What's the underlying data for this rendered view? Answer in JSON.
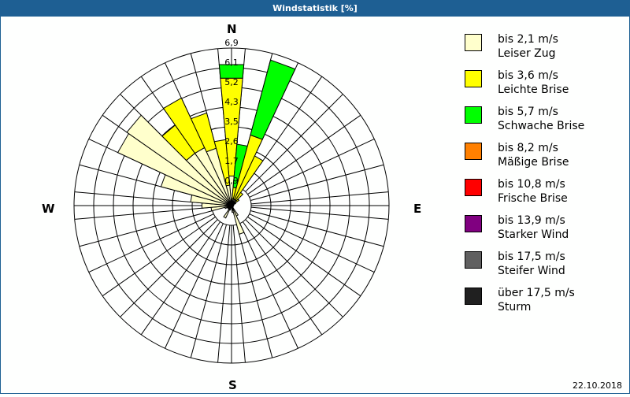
{
  "window": {
    "title": "Windstatistik [%]"
  },
  "compass": {
    "n": "N",
    "e": "E",
    "s": "S",
    "w": "W"
  },
  "legend": [
    {
      "line1": "bis 2,1 m/s",
      "line2": "Leiser Zug",
      "color": "#ffffcc"
    },
    {
      "line1": "bis 3,6 m/s",
      "line2": "Leichte Brise",
      "color": "#ffff00"
    },
    {
      "line1": "bis 5,7 m/s",
      "line2": "Schwache Brise",
      "color": "#00ff00"
    },
    {
      "line1": "bis 8,2 m/s",
      "line2": "Mäßige Brise",
      "color": "#ff8000"
    },
    {
      "line1": "bis 10,8 m/s",
      "line2": "Frische Brise",
      "color": "#ff0000"
    },
    {
      "line1": "bis 13,9 m/s",
      "line2": "Starker Wind",
      "color": "#800080"
    },
    {
      "line1": "bis 17,5 m/s",
      "line2": "Steifer Wind",
      "color": "#606060"
    },
    {
      "line1": "über 17,5 m/s",
      "line2": "Sturm",
      "color": "#202020"
    }
  ],
  "footer": {
    "date": "22.10.2018"
  },
  "chart_data": {
    "type": "wind-rose",
    "title": "Windstatistik [%]",
    "unit": "%",
    "radial_ticks": [
      "0,9",
      "1,7",
      "2,6",
      "3,5",
      "4,3",
      "5,2",
      "6,1",
      "6,9"
    ],
    "radial_max": 6.9,
    "sector_width_deg": 10,
    "series": [
      "Leiser Zug",
      "Leichte Brise",
      "Schwache Brise",
      "Mäßige Brise",
      "Frische Brise",
      "Starker Wind",
      "Steifer Wind",
      "Sturm"
    ],
    "sectors": [
      {
        "dir": 0,
        "values": [
          1.3,
          4.3,
          0.6
        ]
      },
      {
        "dir": 10,
        "values": [
          0.3,
          0.5,
          1.9
        ]
      },
      {
        "dir": 20,
        "values": [
          0.3,
          2.9,
          3.4
        ]
      },
      {
        "dir": 30,
        "values": [
          0.3,
          2.1,
          0
        ]
      },
      {
        "dir": 40,
        "values": [
          0.3,
          0.4,
          0
        ]
      },
      {
        "dir": 50,
        "values": [
          0.2,
          0.2,
          0
        ]
      },
      {
        "dir": 60,
        "values": [
          0.1,
          0.1,
          0
        ]
      },
      {
        "dir": 70,
        "values": [
          0.1,
          0,
          0
        ]
      },
      {
        "dir": 80,
        "values": [
          0.1,
          0,
          0
        ]
      },
      {
        "dir": 90,
        "values": [
          0.05,
          0,
          0
        ]
      },
      {
        "dir": 100,
        "values": [
          0.05,
          0,
          0
        ]
      },
      {
        "dir": 110,
        "values": [
          0.05,
          0,
          0
        ]
      },
      {
        "dir": 120,
        "values": [
          0.05,
          0,
          0
        ]
      },
      {
        "dir": 130,
        "values": [
          0.05,
          0,
          0
        ]
      },
      {
        "dir": 140,
        "values": [
          0.1,
          0,
          0
        ]
      },
      {
        "dir": 150,
        "values": [
          0.5,
          0,
          0
        ]
      },
      {
        "dir": 160,
        "values": [
          1.3,
          0,
          0
        ]
      },
      {
        "dir": 170,
        "values": [
          0.3,
          0,
          0
        ]
      },
      {
        "dir": 180,
        "values": [
          0.1,
          0,
          0
        ]
      },
      {
        "dir": 190,
        "values": [
          0.1,
          0,
          0
        ]
      },
      {
        "dir": 200,
        "values": [
          0.2,
          0,
          0
        ]
      },
      {
        "dir": 210,
        "values": [
          0.6,
          0,
          0
        ]
      },
      {
        "dir": 220,
        "values": [
          0.2,
          0,
          0
        ]
      },
      {
        "dir": 230,
        "values": [
          0.1,
          0,
          0
        ]
      },
      {
        "dir": 240,
        "values": [
          0.2,
          0,
          0
        ]
      },
      {
        "dir": 250,
        "values": [
          0.3,
          0,
          0
        ]
      },
      {
        "dir": 260,
        "values": [
          0.9,
          0,
          0
        ]
      },
      {
        "dir": 270,
        "values": [
          1.3,
          0,
          0
        ]
      },
      {
        "dir": 280,
        "values": [
          1.8,
          0,
          0
        ]
      },
      {
        "dir": 290,
        "values": [
          3.2,
          0,
          0
        ]
      },
      {
        "dir": 300,
        "values": [
          5.5,
          0,
          0
        ]
      },
      {
        "dir": 310,
        "values": [
          5.6,
          0,
          0
        ]
      },
      {
        "dir": 320,
        "values": [
          2.8,
          1.5,
          0
        ]
      },
      {
        "dir": 330,
        "values": [
          2.8,
          2.4,
          0
        ]
      },
      {
        "dir": 340,
        "values": [
          2.6,
          1.6,
          0
        ]
      },
      {
        "dir": 350,
        "values": [
          0.9,
          2.0,
          0
        ]
      }
    ]
  }
}
